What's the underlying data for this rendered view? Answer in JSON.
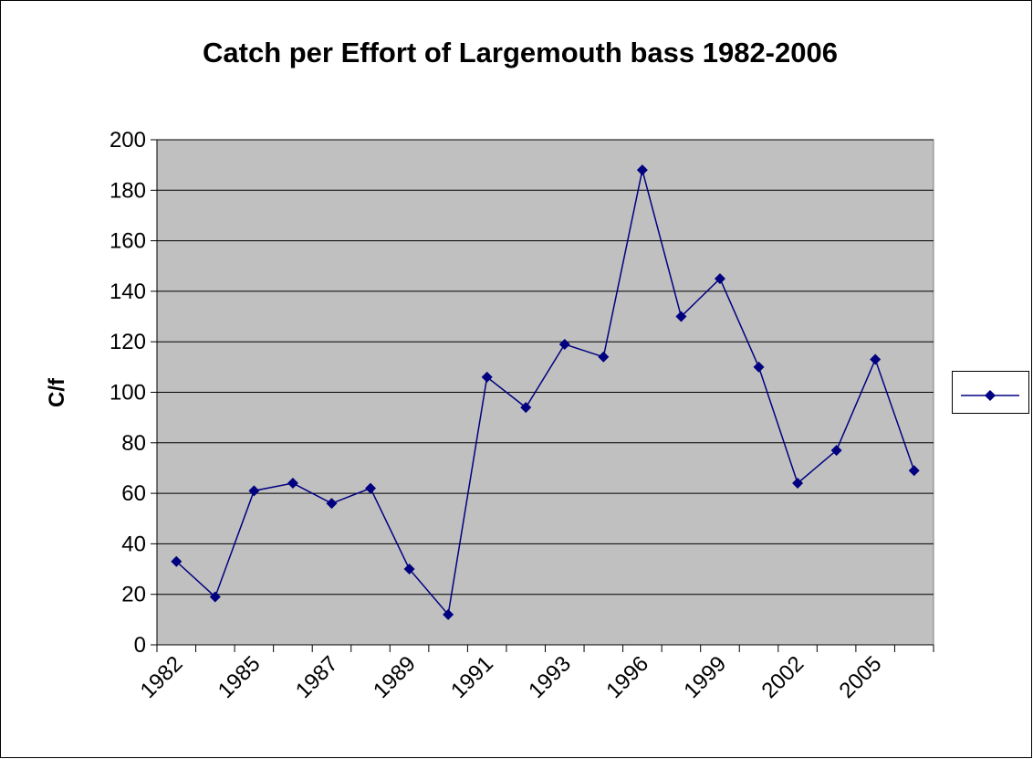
{
  "chart_data": {
    "type": "line",
    "title": "Catch per Effort of Largemouth bass 1982-2006",
    "y_label": "C/f",
    "categories": [
      "1982",
      null,
      "1985",
      null,
      "1987",
      null,
      "1989",
      null,
      "1991",
      null,
      "1993",
      null,
      "1996",
      null,
      "1999",
      null,
      "2002",
      null,
      "2005",
      null
    ],
    "values": [
      33,
      19,
      61,
      64,
      56,
      62,
      30,
      12,
      106,
      94,
      119,
      114,
      188,
      130,
      145,
      110,
      64,
      77,
      113,
      69
    ],
    "color": "#000080",
    "ylim": [
      0,
      200
    ],
    "yticks": [
      0,
      20,
      40,
      60,
      80,
      100,
      120,
      140,
      160,
      180,
      200
    ],
    "grid": true,
    "legend": "right"
  }
}
